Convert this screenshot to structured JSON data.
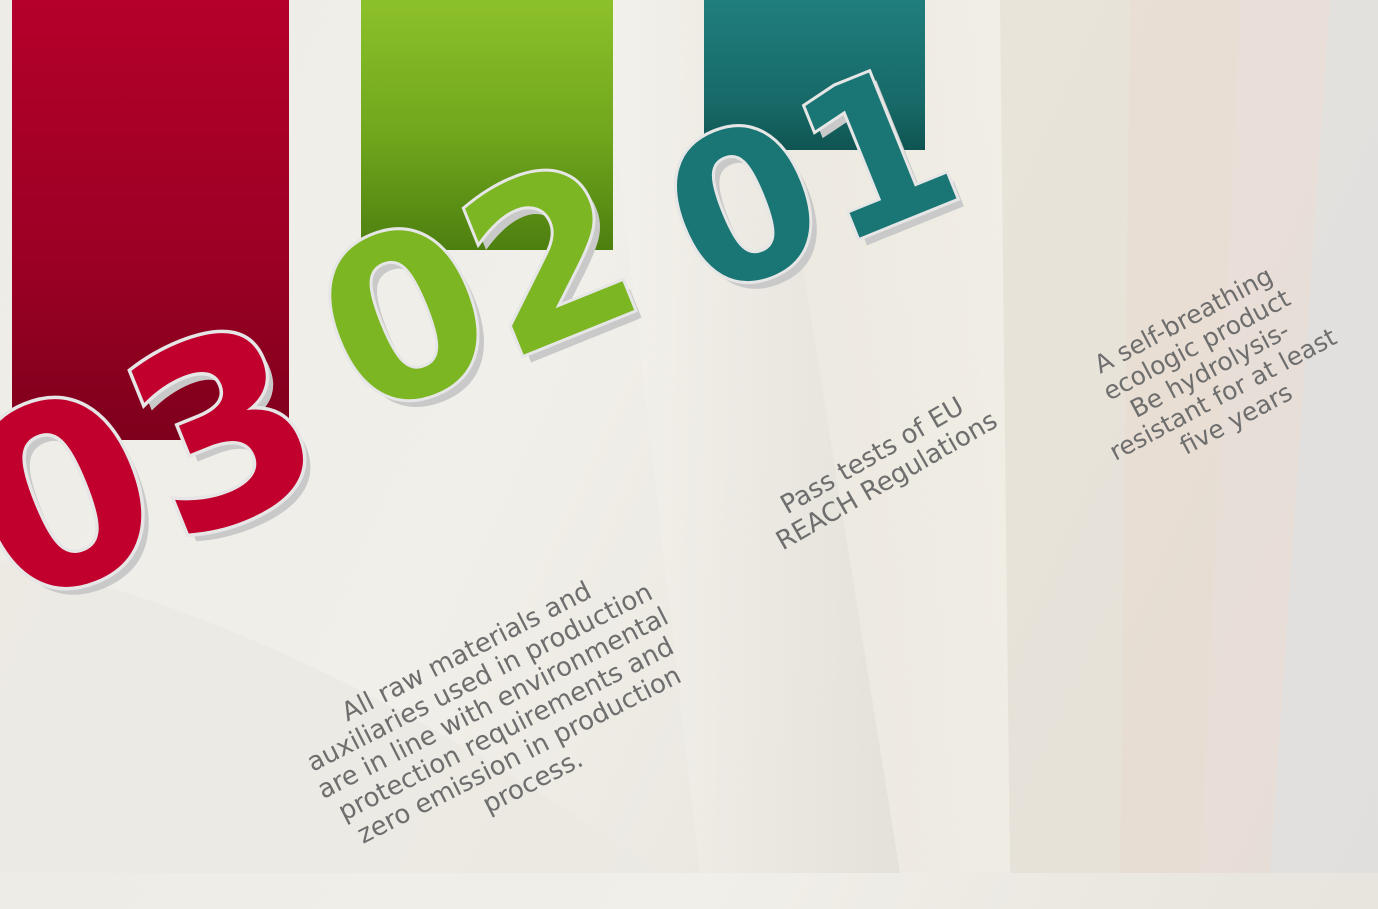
{
  "features": [
    {
      "number": "01",
      "color": "#1a7674",
      "caption": "A self-breathing\necologic product\nBe hydrolysis-\nresistant for at least\nfive years"
    },
    {
      "number": "02",
      "color": "#7cb623",
      "caption": "Pass tests of EU\nREACH Regulations"
    },
    {
      "number": "03",
      "color": "#c2002e",
      "caption": "All raw materials and\nauxiliaries used in production\nare in line with environmental\nprotection requirements and\nzero emission in production\nprocess."
    }
  ]
}
